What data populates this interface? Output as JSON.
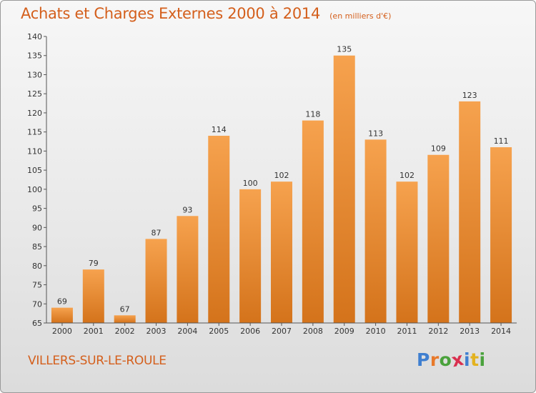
{
  "title": "Achats et Charges Externes 2000 à 2014",
  "subtitle": "(en milliers d'€)",
  "place_name": "VILLERS-SUR-LE-ROULE",
  "logo": {
    "text": "Proxiti",
    "letter_colors": [
      "#3f7fd0",
      "#e8792a",
      "#4aa23c",
      "#d9304f",
      "#3f7fd0",
      "#e3b21f",
      "#4aa23c"
    ]
  },
  "colors": {
    "bar_top": "#f6a24e",
    "bar_bottom": "#d4731b",
    "text": "#d45f1c"
  },
  "chart_data": {
    "type": "bar",
    "title": "Achats et Charges Externes 2000 à 2014",
    "categories": [
      "2000",
      "2001",
      "2002",
      "2003",
      "2004",
      "2005",
      "2006",
      "2007",
      "2008",
      "2009",
      "2010",
      "2011",
      "2012",
      "2013",
      "2014"
    ],
    "values": [
      69,
      79,
      67,
      87,
      93,
      114,
      100,
      102,
      118,
      135,
      113,
      102,
      109,
      123,
      111
    ],
    "ylim": [
      65,
      140
    ],
    "yticks": [
      65,
      70,
      75,
      80,
      85,
      90,
      95,
      100,
      105,
      110,
      115,
      120,
      125,
      130,
      135,
      140
    ],
    "grid": false,
    "legend": "none"
  }
}
